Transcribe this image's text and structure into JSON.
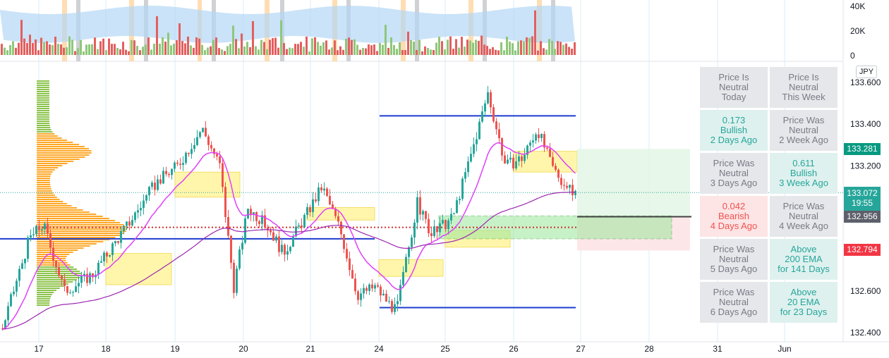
{
  "chart_data": {
    "type": "line",
    "symbol_currency": "JPY",
    "price_axis": {
      "ticks": [
        "133.600",
        "133.400",
        "133.200",
        "133.000",
        "132.800",
        "132.600",
        "132.400"
      ],
      "ylim": [
        132.37,
        133.66
      ]
    },
    "volume_axis": {
      "ticks": [
        "40K",
        "20K",
        "0"
      ]
    },
    "time_axis": {
      "ticks": [
        "17",
        "18",
        "19",
        "20",
        "21",
        "24",
        "25",
        "26",
        "27",
        "28",
        "31",
        "Jun"
      ]
    },
    "price_labels": [
      {
        "value": "133.281",
        "color": "#089981"
      },
      {
        "value": "133.072",
        "countdown": "19:55",
        "color": "#26a69a"
      },
      {
        "value": "132.956",
        "color": "#5d606b"
      },
      {
        "value": "132.794",
        "color": "#f23645"
      }
    ],
    "levels": {
      "upper_blue": 133.44,
      "middle_blue": 132.85,
      "lower_blue": 132.52,
      "red_dotted": 132.905,
      "last_price": 133.072,
      "dark_line": 132.956
    },
    "status_table": [
      [
        {
          "text": "Price Is\nNeutral\nToday",
          "state": "neutral"
        },
        {
          "text": "Price Is\nNeutral\nThis Week",
          "state": "neutral"
        }
      ],
      [
        {
          "text": "0.173\nBullish\n2 Days Ago",
          "state": "bull"
        },
        {
          "text": "Price Was\nNeutral\n2 Week Ago",
          "state": "neutral"
        }
      ],
      [
        {
          "text": "Price Was\nNeutral\n3 Days Ago",
          "state": "neutral"
        },
        {
          "text": "0.611\nBullish\n3 Week Ago",
          "state": "bull"
        }
      ],
      [
        {
          "text": "0.042\nBearish\n4 Days Ago",
          "state": "bear"
        },
        {
          "text": "Price Was\nNeutral\n4 Week Ago",
          "state": "neutral"
        }
      ],
      [
        {
          "text": "Price Was\nNeutral\n5 Days Ago",
          "state": "neutral"
        },
        {
          "text": "Above\n200 EMA\nfor 141 Days",
          "state": "bull"
        }
      ],
      [
        {
          "text": "Price Was\nNeutral\n6 Days Ago",
          "state": "neutral"
        },
        {
          "text": "Above\n20 EMA\nfor 23 Days",
          "state": "bull"
        }
      ]
    ],
    "colors": {
      "up": "#26a69a",
      "down": "#ef5350",
      "ema_fast": "#e040fb",
      "ema_slow": "#9c27b0",
      "level_line": "#1e3ccf",
      "zone": "#fff59d",
      "profile_low": "#8bc34a",
      "profile_high": "#ffa726"
    }
  }
}
